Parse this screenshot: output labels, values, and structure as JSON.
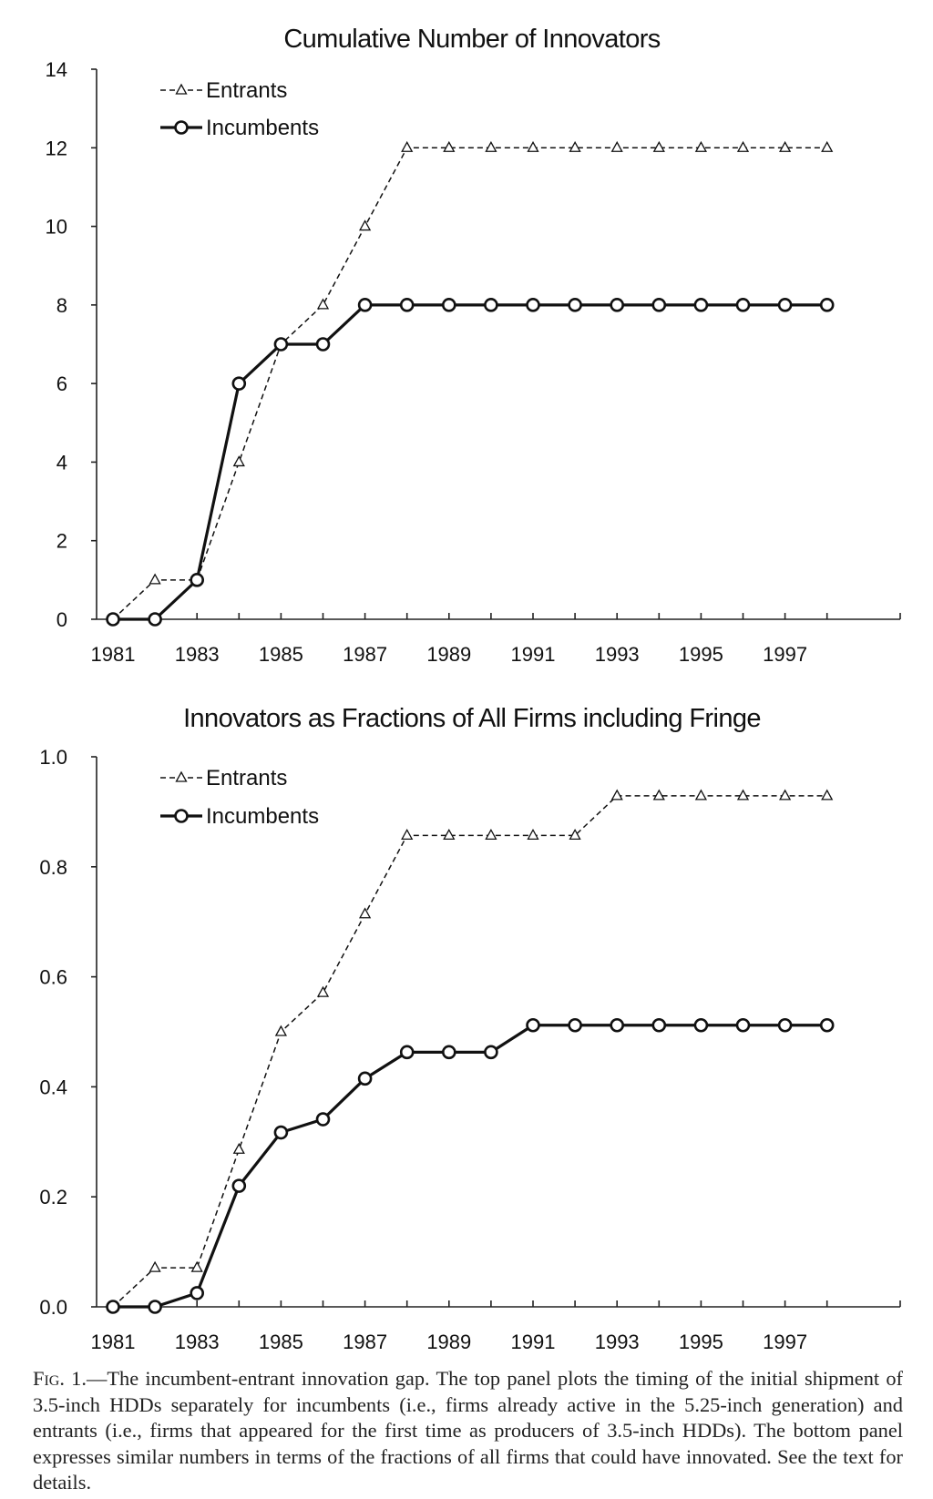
{
  "chart_data": [
    {
      "type": "line",
      "title": "Cumulative Number of Innovators",
      "x": [
        "1981",
        "1982",
        "1983",
        "1984",
        "1985",
        "1986",
        "1987",
        "1988",
        "1989",
        "1990",
        "1991",
        "1992",
        "1993",
        "1994",
        "1995",
        "1996",
        "1997",
        "1998"
      ],
      "x_tick_labels": [
        "1981",
        "1983",
        "1985",
        "1987",
        "1989",
        "1991",
        "1993",
        "1995",
        "1997"
      ],
      "y_tick_labels": [
        "0",
        "2",
        "4",
        "6",
        "8",
        "10",
        "12",
        "14"
      ],
      "ylim": [
        0,
        14
      ],
      "grid": false,
      "legend_position": "top-left",
      "series": [
        {
          "name": "Entrants",
          "style": "dashed-triangle",
          "values": [
            0,
            1,
            1,
            4,
            7,
            8,
            10,
            12,
            12,
            12,
            12,
            12,
            12,
            12,
            12,
            12,
            12,
            12
          ]
        },
        {
          "name": "Incumbents",
          "style": "solid-circle",
          "values": [
            0,
            0,
            1,
            6,
            7,
            7,
            8,
            8,
            8,
            8,
            8,
            8,
            8,
            8,
            8,
            8,
            8,
            8
          ]
        }
      ]
    },
    {
      "type": "line",
      "title": "Innovators as Fractions of All Firms including Fringe",
      "x": [
        "1981",
        "1982",
        "1983",
        "1984",
        "1985",
        "1986",
        "1987",
        "1988",
        "1989",
        "1990",
        "1991",
        "1992",
        "1993",
        "1994",
        "1995",
        "1996",
        "1997",
        "1998"
      ],
      "x_tick_labels": [
        "1981",
        "1983",
        "1985",
        "1987",
        "1989",
        "1991",
        "1993",
        "1995",
        "1997"
      ],
      "y_tick_labels": [
        "0.0",
        "0.2",
        "0.4",
        "0.6",
        "0.8",
        "1.0"
      ],
      "ylim": [
        0,
        1.0
      ],
      "grid": false,
      "legend_position": "top-left",
      "series": [
        {
          "name": "Entrants",
          "style": "dashed-triangle",
          "values": [
            0,
            0.071,
            0.071,
            0.286,
            0.5,
            0.571,
            0.714,
            0.857,
            0.857,
            0.857,
            0.857,
            0.857,
            0.929,
            0.929,
            0.929,
            0.929,
            0.929,
            0.929
          ]
        },
        {
          "name": "Incumbents",
          "style": "solid-circle",
          "values": [
            0,
            0,
            0.025,
            0.22,
            0.317,
            0.341,
            0.415,
            0.463,
            0.463,
            0.463,
            0.512,
            0.512,
            0.512,
            0.512,
            0.512,
            0.512,
            0.512,
            0.512
          ]
        }
      ]
    }
  ],
  "caption": {
    "label": "Fig. 1.",
    "text": "—The incumbent-entrant innovation gap. The top panel plots the timing of the initial shipment of 3.5-inch HDDs separately for incumbents (i.e., firms already active in the 5.25-inch generation) and entrants (i.e., firms that appeared for the first time as producers of 3.5-inch HDDs). The bottom panel expresses similar numbers in terms of the fractions of all firms that could have innovated. See the text for details."
  },
  "colors": {
    "line": "#111111",
    "marker_fill": "#ffffff",
    "axis": "#222222"
  }
}
